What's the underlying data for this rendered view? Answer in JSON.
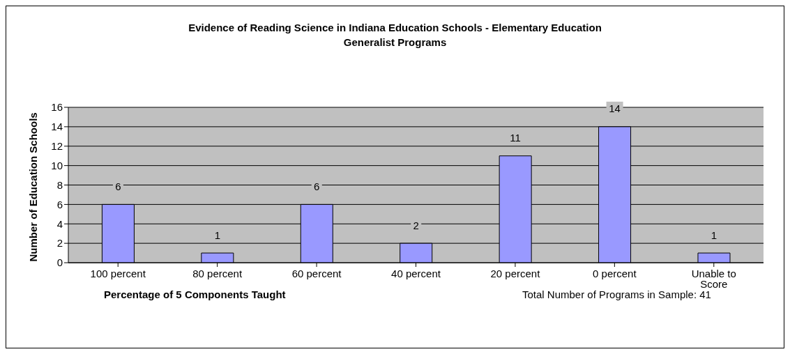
{
  "chart_data": {
    "type": "bar",
    "title": "Evidence of Reading Science in Indiana Education Schools - Elementary Education Generalist Programs",
    "xlabel": "Percentage of 5 Components Taught",
    "ylabel": "Number of Education Schools",
    "annotations": [
      "Total Number of Programs in Sample:  41"
    ],
    "categories": [
      "100 percent",
      "80 percent",
      "60 percent",
      "40 percent",
      "20 percent",
      "0 percent",
      "Unable to Score"
    ],
    "values": [
      6,
      1,
      6,
      2,
      11,
      14,
      1
    ],
    "color": "#9999ff",
    "ylim": [
      0,
      16
    ],
    "yticks": [
      0,
      2,
      4,
      6,
      8,
      10,
      12,
      14,
      16
    ],
    "grid": "y",
    "data_labels": true,
    "legend": false
  }
}
